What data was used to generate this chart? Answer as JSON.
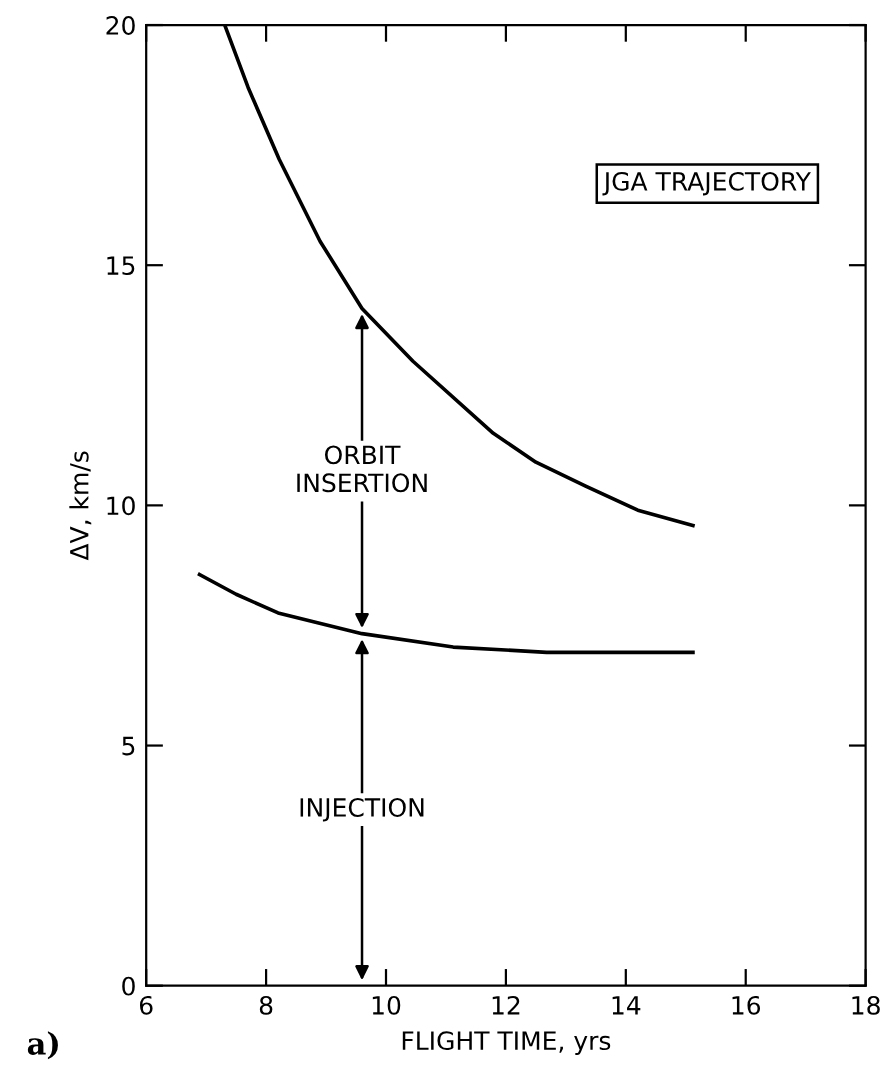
{
  "chart_data": {
    "type": "line",
    "xlabel": "FLIGHT TIME, yrs",
    "ylabel": "ΔV, km/s",
    "series": [
      {
        "color": "#000000",
        "x": [
          7.31,
          7.7,
          8.22,
          8.9,
          9.6,
          10.45,
          11.79,
          12.5,
          13.33,
          14.2,
          15.12
        ],
        "values": [
          20,
          18.7,
          17.2,
          15.5,
          14.1,
          13.0,
          11.5,
          10.9,
          10.4,
          9.9,
          9.58
        ]
      },
      {
        "color": "#000000",
        "x": [
          6.89,
          7.5,
          8.2,
          9.6,
          11.12,
          12.68,
          15.12
        ],
        "values": [
          8.56,
          8.15,
          7.76,
          7.33,
          7.05,
          6.94,
          6.94
        ]
      }
    ],
    "annotations": [
      "JGA TRAJECTORY",
      "ORBIT\nINSERTION",
      "INJECTION",
      "a)"
    ],
    "xlim": [
      6,
      18
    ],
    "ylim": [
      0,
      20
    ],
    "xticks": [
      6,
      8,
      10,
      12,
      14,
      16,
      18
    ],
    "yticks": [
      0,
      5,
      10,
      15,
      20
    ],
    "grid": false,
    "legend": false,
    "marker": "none",
    "line_style": "solid"
  }
}
